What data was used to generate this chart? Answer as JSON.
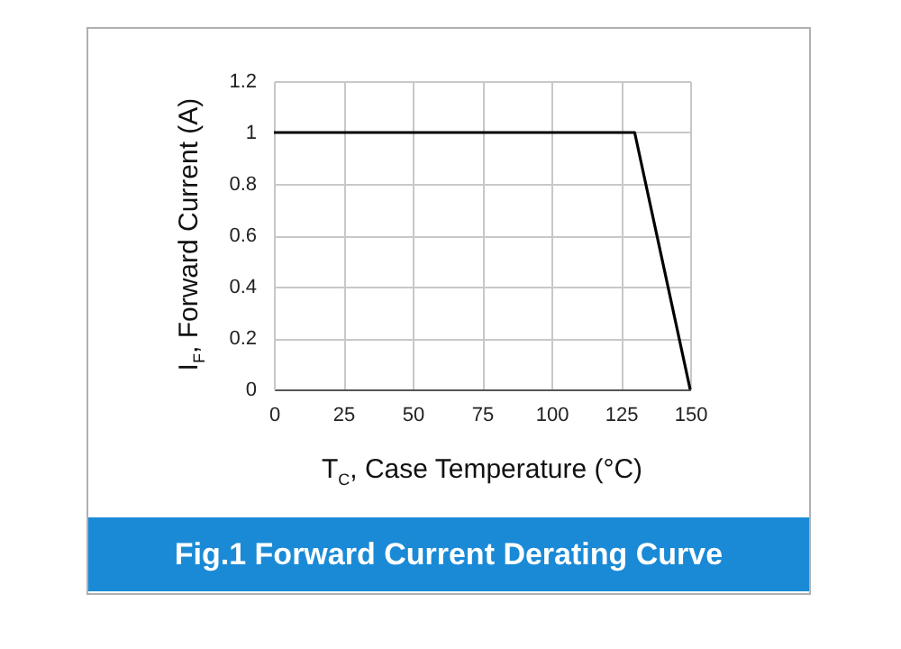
{
  "chart_data": {
    "type": "line",
    "title": "Fig.1 Forward Current Derating Curve",
    "xlabel": "T$_{C}$, Case Temperature  (°C)",
    "ylabel": "I$_{F}$, Forward Current (A)",
    "x": [
      0,
      130,
      150
    ],
    "series": [
      {
        "color": "#000000",
        "values": [
          1,
          1,
          0
        ]
      }
    ],
    "xlim": [
      0,
      150
    ],
    "xticks": [
      0,
      25,
      50,
      75,
      100,
      125,
      150
    ],
    "ylim": [
      0,
      1.2
    ],
    "yticks": [
      0,
      0.2,
      0.4,
      0.6,
      0.8,
      1,
      1.2
    ],
    "grid": true,
    "line_style": "solid"
  }
}
